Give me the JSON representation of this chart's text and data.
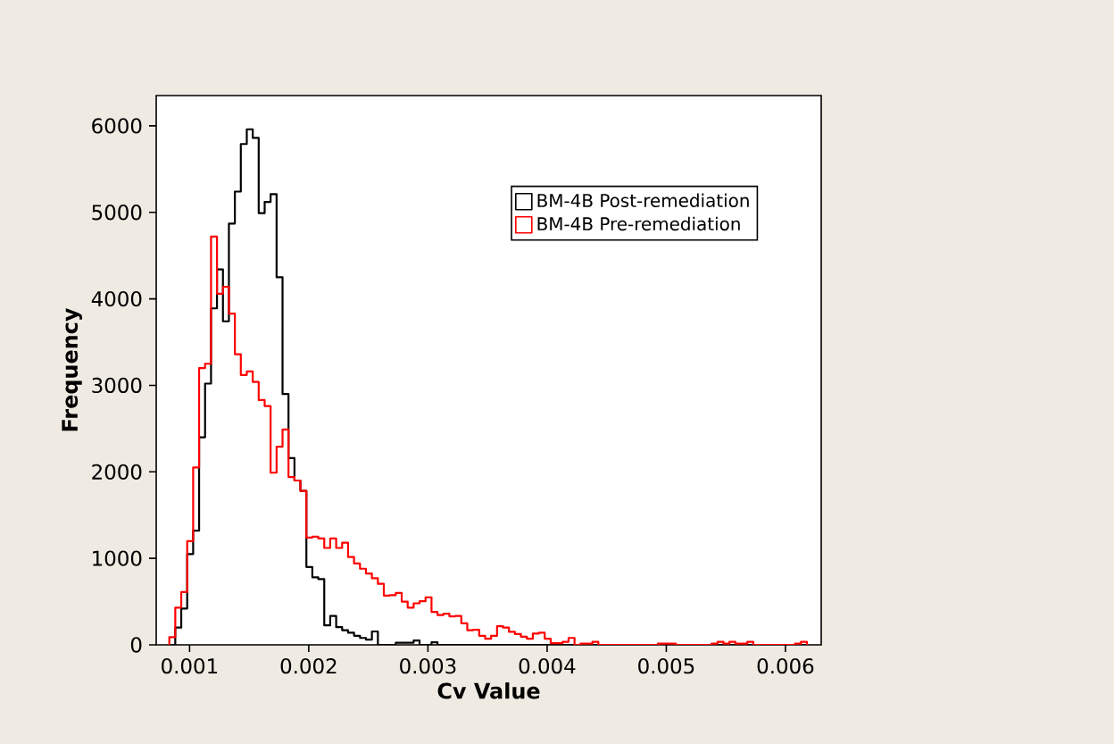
{
  "chart_data": {
    "type": "histogram",
    "xlabel": "Cv Value",
    "ylabel": "Frequency",
    "bins": [
      0.00083,
      0.00088,
      0.00093,
      0.00098,
      0.00103,
      0.00108,
      0.00113,
      0.00118,
      0.00123,
      0.00128,
      0.00133,
      0.00138,
      0.00143,
      0.00148,
      0.00153,
      0.00158,
      0.00163,
      0.00168,
      0.00173,
      0.00178,
      0.00183,
      0.00188,
      0.00193,
      0.00198,
      0.00203,
      0.00208,
      0.00213,
      0.00218,
      0.00223,
      0.00228,
      0.00233,
      0.00238,
      0.00243,
      0.00248,
      0.00253,
      0.00258,
      0.00263,
      0.00268,
      0.00273,
      0.00278,
      0.00283,
      0.00288,
      0.00293,
      0.00298,
      0.00303,
      0.00308,
      0.00313,
      0.00318,
      0.00323,
      0.00328,
      0.00333,
      0.00338,
      0.00343,
      0.00348,
      0.00353,
      0.00358,
      0.00363,
      0.00368,
      0.00373,
      0.00378,
      0.00383,
      0.00388,
      0.00393,
      0.00398,
      0.00403,
      0.00408,
      0.00413,
      0.00418,
      0.00423,
      0.00428,
      0.00433,
      0.00438,
      0.00443,
      0.00448,
      0.00453,
      0.00458,
      0.00463,
      0.00468,
      0.00473,
      0.00478,
      0.00483,
      0.00488,
      0.00493,
      0.00498,
      0.00503,
      0.00508,
      0.00513,
      0.00518,
      0.00523,
      0.00528,
      0.00533,
      0.00538,
      0.00543,
      0.00548,
      0.00553,
      0.00558,
      0.00563,
      0.00568,
      0.00573,
      0.00578,
      0.00583,
      0.00588,
      0.00593,
      0.00598,
      0.00603,
      0.00608,
      0.00613,
      0.00618
    ],
    "series": [
      {
        "name": "BM-4B Post-remediation",
        "color": "#000000",
        "values": [
          0,
          200,
          420,
          1050,
          1320,
          2400,
          3020,
          3890,
          4340,
          3740,
          4870,
          5240,
          5790,
          5960,
          5860,
          4990,
          5120,
          5210,
          4250,
          2900,
          2160,
          1900,
          1780,
          900,
          780,
          760,
          225,
          335,
          205,
          170,
          140,
          105,
          80,
          60,
          155,
          0,
          0,
          0,
          25,
          25,
          25,
          50,
          0,
          0,
          30,
          0,
          0,
          0,
          0,
          0,
          0,
          0,
          0,
          0,
          0,
          0,
          0,
          0,
          0,
          0,
          0,
          0,
          0,
          0,
          0,
          0,
          0,
          0,
          0,
          0,
          0,
          0,
          0,
          0,
          0,
          0,
          0,
          0,
          0,
          0,
          0,
          0,
          0,
          0,
          0,
          0,
          0,
          0,
          0,
          0,
          0,
          0,
          0,
          0,
          0,
          0,
          0,
          0,
          0,
          0,
          0,
          0,
          0,
          0,
          0,
          0,
          0
        ]
      },
      {
        "name": "BM-4B Pre-remediation",
        "color": "#ff0000",
        "values": [
          90,
          430,
          610,
          1200,
          2050,
          3200,
          3250,
          4720,
          4060,
          4140,
          3830,
          3360,
          3120,
          3160,
          3040,
          2830,
          2760,
          1990,
          2290,
          2490,
          1940,
          1900,
          1780,
          1240,
          1250,
          1230,
          1120,
          1230,
          1120,
          1180,
          1015,
          940,
          880,
          825,
          770,
          705,
          570,
          575,
          600,
          500,
          430,
          480,
          505,
          550,
          380,
          345,
          360,
          330,
          335,
          250,
          170,
          175,
          105,
          70,
          105,
          215,
          200,
          150,
          125,
          95,
          70,
          130,
          140,
          70,
          20,
          20,
          35,
          80,
          0,
          15,
          15,
          35,
          0,
          0,
          0,
          0,
          0,
          0,
          0,
          0,
          0,
          0,
          15,
          15,
          15,
          0,
          0,
          0,
          0,
          0,
          0,
          15,
          35,
          15,
          35,
          15,
          15,
          35,
          0,
          0,
          0,
          0,
          0,
          0,
          0,
          15,
          35
        ]
      }
    ],
    "xlim": [
      0.00072,
      0.0063
    ],
    "ylim": [
      0,
      6350
    ],
    "xticks": [
      0.001,
      0.002,
      0.003,
      0.004,
      0.005,
      0.006
    ],
    "yticks": [
      0,
      1000,
      2000,
      3000,
      4000,
      5000,
      6000
    ],
    "legend": "top right"
  }
}
